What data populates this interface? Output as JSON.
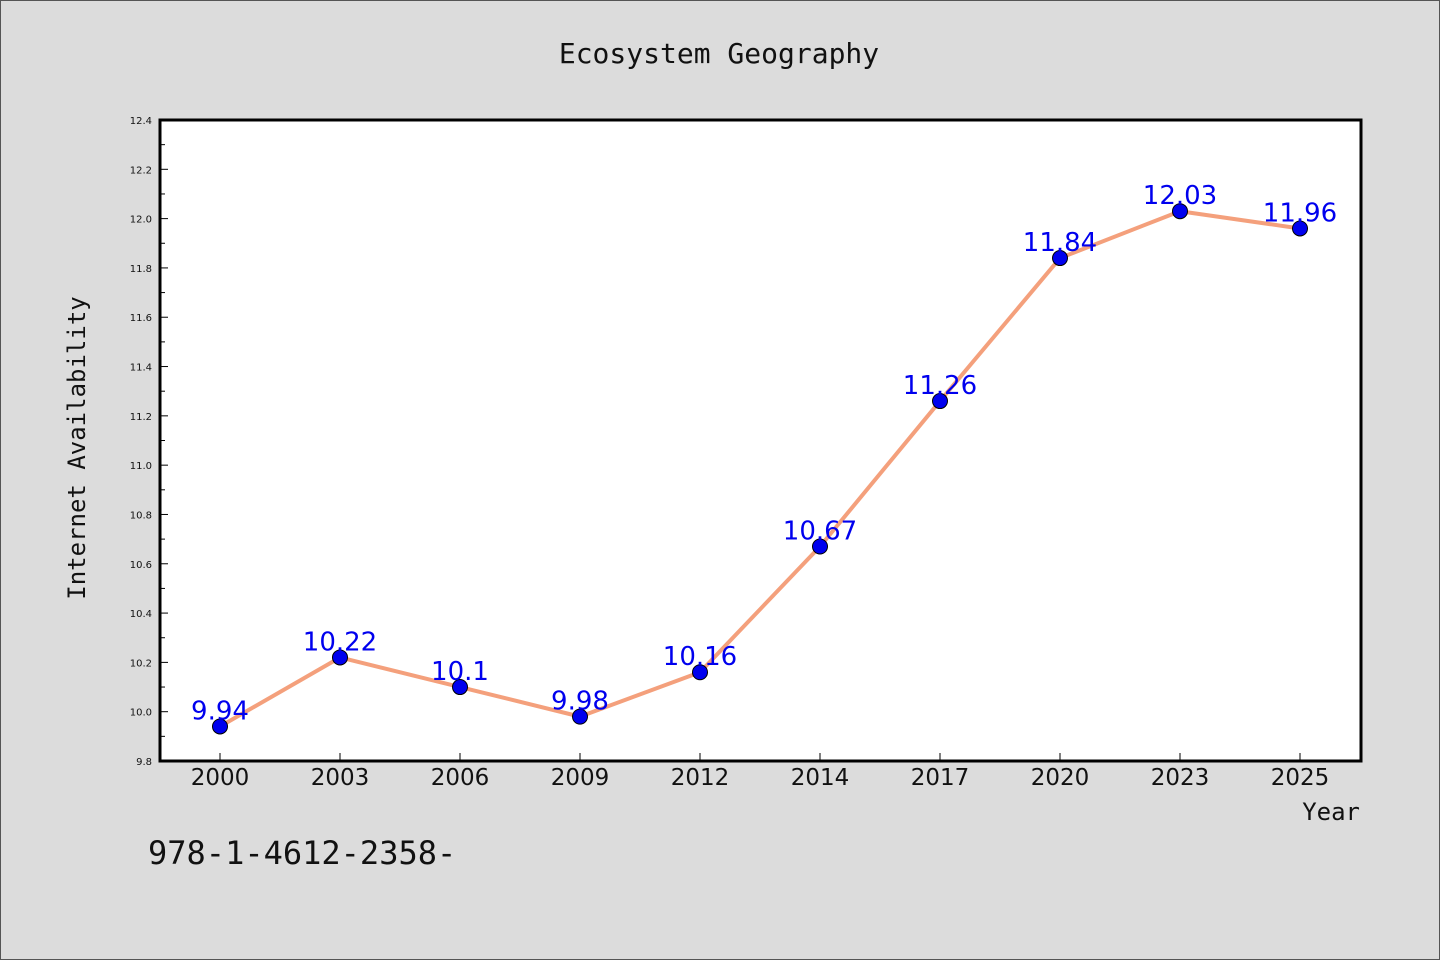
{
  "chart_data": {
    "type": "line",
    "title": "Ecosystem Geography",
    "xlabel": "Year",
    "ylabel": "Internet Availability",
    "categories": [
      "2000",
      "2003",
      "2006",
      "2009",
      "2012",
      "2014",
      "2017",
      "2020",
      "2023",
      "2025"
    ],
    "values": [
      9.94,
      10.22,
      10.1,
      9.98,
      10.16,
      10.67,
      11.26,
      11.84,
      12.03,
      11.96
    ],
    "data_labels": [
      "9.94",
      "10.22",
      "10.1",
      "9.98",
      "10.16",
      "10.67",
      "11.26",
      "11.84",
      "12.03",
      "11.96"
    ],
    "ylim": [
      9.8,
      12.4
    ],
    "yticks": [
      "9.8",
      "10.0",
      "10.2",
      "10.4",
      "10.6",
      "10.8",
      "11.0",
      "11.2",
      "11.4",
      "11.6",
      "11.8",
      "12.0",
      "12.2",
      "12.4"
    ],
    "grid": false,
    "line_color": "#f4a07c",
    "marker_color": "#0000ee",
    "label_color": "#0000ee"
  },
  "footer_note": "978-1-4612-2358-"
}
